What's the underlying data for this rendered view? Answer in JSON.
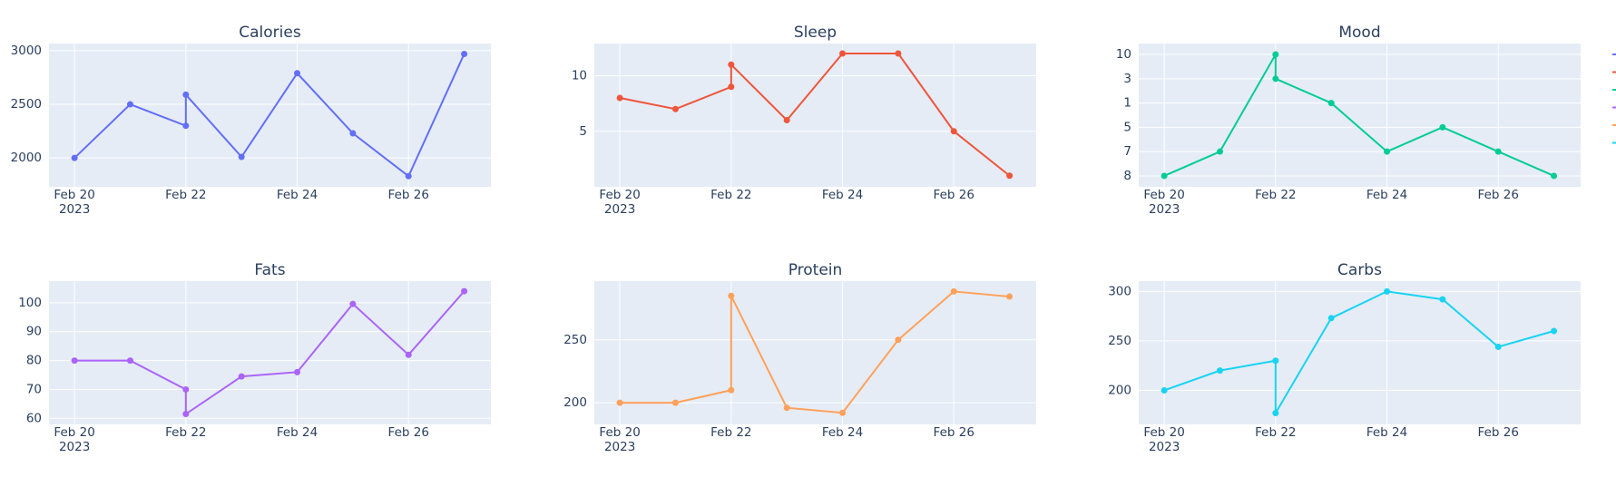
{
  "chart_data": [
    {
      "type": "line",
      "title": "Calories",
      "color": "#636efa",
      "x": [
        "2023-02-20",
        "2023-02-21",
        "2023-02-22",
        "2023-02-22",
        "2023-02-23",
        "2023-02-24",
        "2023-02-25",
        "2023-02-26",
        "2023-02-27"
      ],
      "values": [
        2000,
        2500,
        2300,
        2590,
        2010,
        2790,
        2230,
        1830,
        2970
      ],
      "xlim": [
        "2023-02-19T13:00:00Z",
        "2023-02-27T11:30:00Z"
      ],
      "xticks": [
        {
          "value": "2023-02-20",
          "label": "Feb 20"
        },
        {
          "value": "2023-02-22",
          "label": "Feb 22"
        },
        {
          "value": "2023-02-24",
          "label": "Feb 24"
        },
        {
          "value": "2023-02-26",
          "label": "Feb 26"
        }
      ],
      "x_year": "2023",
      "ylim": [
        1731,
        3067
      ],
      "yticks": [
        2000,
        2500,
        3000
      ]
    },
    {
      "type": "line",
      "title": "Sleep",
      "color": "#EF553B",
      "x": [
        "2023-02-20",
        "2023-02-21",
        "2023-02-22",
        "2023-02-22",
        "2023-02-23",
        "2023-02-24",
        "2023-02-25",
        "2023-02-26",
        "2023-02-27"
      ],
      "values": [
        8,
        7,
        9,
        11,
        6,
        12,
        12,
        5,
        1
      ],
      "xlim": [
        "2023-02-19T13:00:00Z",
        "2023-02-27T11:30:00Z"
      ],
      "xticks": [
        {
          "value": "2023-02-20",
          "label": "Feb 20"
        },
        {
          "value": "2023-02-22",
          "label": "Feb 22"
        },
        {
          "value": "2023-02-24",
          "label": "Feb 24"
        },
        {
          "value": "2023-02-26",
          "label": "Feb 26"
        }
      ],
      "x_year": "2023",
      "ylim": [
        0,
        12.9
      ],
      "yticks": [
        5,
        10
      ]
    },
    {
      "type": "line",
      "title": "Mood",
      "color": "#00cc96",
      "x": [
        "2023-02-20",
        "2023-02-21",
        "2023-02-22",
        "2023-02-22",
        "2023-02-23",
        "2023-02-24",
        "2023-02-25",
        "2023-02-26",
        "2023-02-27"
      ],
      "values": [
        "8",
        "7",
        "10",
        "3",
        "1",
        "7",
        "5",
        "7",
        "8"
      ],
      "xlim": [
        "2023-02-19T13:00:00Z",
        "2023-02-27T11:30:00Z"
      ],
      "xticks": [
        {
          "value": "2023-02-20",
          "label": "Feb 20"
        },
        {
          "value": "2023-02-22",
          "label": "Feb 22"
        },
        {
          "value": "2023-02-24",
          "label": "Feb 24"
        },
        {
          "value": "2023-02-26",
          "label": "Feb 26"
        }
      ],
      "x_year": "2023",
      "ycategories": [
        "8",
        "7",
        "5",
        "1",
        "3",
        "10"
      ]
    },
    {
      "type": "line",
      "title": "Fats",
      "color": "#ab63fa",
      "x": [
        "2023-02-20",
        "2023-02-21",
        "2023-02-22",
        "2023-02-22",
        "2023-02-23",
        "2023-02-24",
        "2023-02-25",
        "2023-02-26",
        "2023-02-27"
      ],
      "values": [
        80,
        80,
        70,
        61.5,
        74.5,
        76,
        99.6,
        82,
        104
      ],
      "xlim": [
        "2023-02-19T13:00:00Z",
        "2023-02-27T11:30:00Z"
      ],
      "xticks": [
        {
          "value": "2023-02-20",
          "label": "Feb 20"
        },
        {
          "value": "2023-02-22",
          "label": "Feb 22"
        },
        {
          "value": "2023-02-24",
          "label": "Feb 24"
        },
        {
          "value": "2023-02-26",
          "label": "Feb 26"
        }
      ],
      "x_year": "2023",
      "ylim": [
        57.9,
        107.5
      ],
      "yticks": [
        60,
        70,
        80,
        90,
        100
      ]
    },
    {
      "type": "line",
      "title": "Protein",
      "color": "#FFA15A",
      "x": [
        "2023-02-20",
        "2023-02-21",
        "2023-02-22",
        "2023-02-22",
        "2023-02-23",
        "2023-02-24",
        "2023-02-25",
        "2023-02-26",
        "2023-02-27"
      ],
      "values": [
        200,
        200,
        210,
        285,
        196,
        192,
        250,
        288.5,
        284.4
      ],
      "xlim": [
        "2023-02-19T13:00:00Z",
        "2023-02-27T11:30:00Z"
      ],
      "xticks": [
        {
          "value": "2023-02-20",
          "label": "Feb 20"
        },
        {
          "value": "2023-02-22",
          "label": "Feb 22"
        },
        {
          "value": "2023-02-24",
          "label": "Feb 24"
        },
        {
          "value": "2023-02-26",
          "label": "Feb 26"
        }
      ],
      "x_year": "2023",
      "ylim": [
        182.8,
        296.7
      ],
      "yticks": [
        200,
        250
      ]
    },
    {
      "type": "line",
      "title": "Carbs",
      "color": "#19d3f3",
      "x": [
        "2023-02-20",
        "2023-02-21",
        "2023-02-22",
        "2023-02-22",
        "2023-02-23",
        "2023-02-24",
        "2023-02-25",
        "2023-02-26",
        "2023-02-27"
      ],
      "values": [
        200,
        220,
        230,
        177,
        273,
        300,
        292,
        244,
        260
      ],
      "xlim": [
        "2023-02-19T13:00:00Z",
        "2023-02-27T11:30:00Z"
      ],
      "xticks": [
        {
          "value": "2023-02-20",
          "label": "Feb 20"
        },
        {
          "value": "2023-02-22",
          "label": "Feb 22"
        },
        {
          "value": "2023-02-24",
          "label": "Feb 24"
        },
        {
          "value": "2023-02-26",
          "label": "Feb 26"
        }
      ],
      "x_year": "2023",
      "ylim": [
        165.6,
        310.4
      ],
      "yticks": [
        200,
        250,
        300
      ]
    }
  ]
}
